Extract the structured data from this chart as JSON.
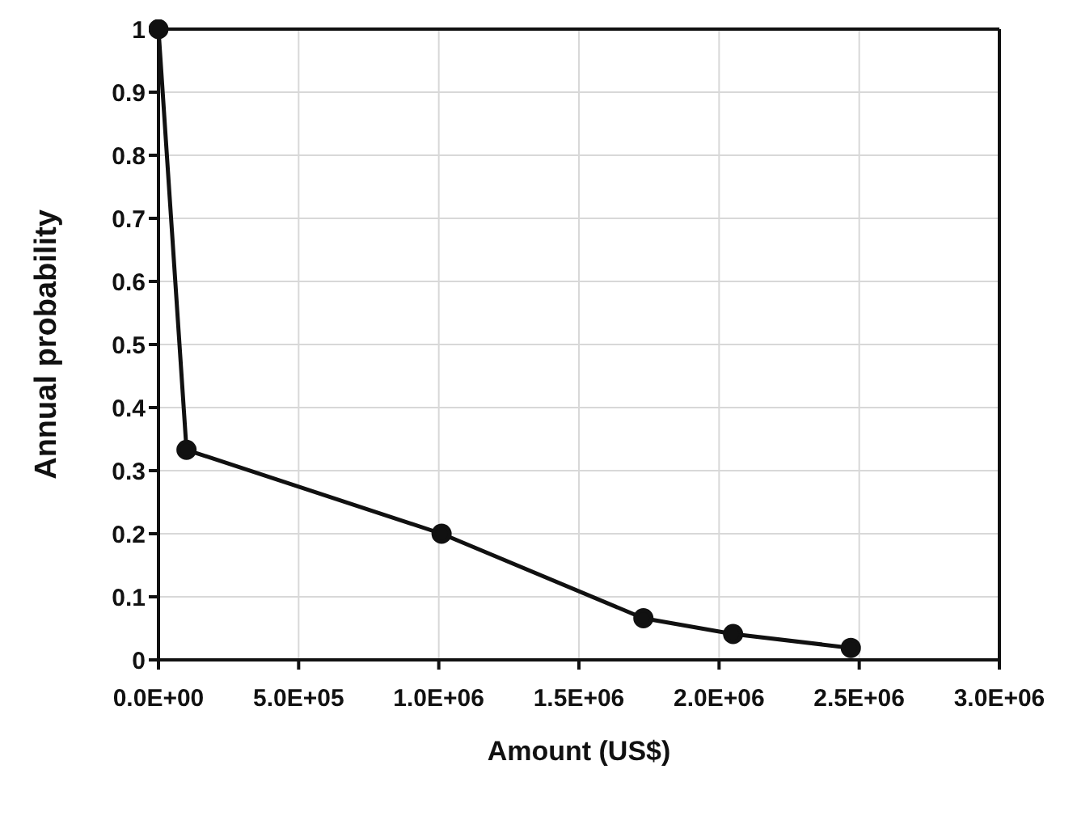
{
  "chart_data": {
    "type": "line",
    "xlabel": "Amount (US$)",
    "ylabel": "Annual probability",
    "x": [
      0,
      100000,
      1010000,
      1730000,
      2050000,
      2470000
    ],
    "series": [
      {
        "color": "#111111",
        "values": [
          1,
          0.333,
          0.2,
          0.066,
          0.041,
          0.019
        ]
      }
    ],
    "xlim": [
      0,
      3000000
    ],
    "xticks": [
      {
        "value": 0,
        "label": "0.0E+00"
      },
      {
        "value": 500000,
        "label": "5.0E+05"
      },
      {
        "value": 1000000,
        "label": "1.0E+06"
      },
      {
        "value": 1500000,
        "label": "1.5E+06"
      },
      {
        "value": 2000000,
        "label": "2.0E+06"
      },
      {
        "value": 2500000,
        "label": "2.5E+06"
      },
      {
        "value": 3000000,
        "label": "3.0E+06"
      }
    ],
    "ylim": [
      0,
      1
    ],
    "yticks": [
      0,
      0.1,
      0.2,
      0.3,
      0.4,
      0.5,
      0.6,
      0.7,
      0.8,
      0.9,
      1
    ],
    "grid": true,
    "marker": "circle",
    "line_style": "solid"
  }
}
